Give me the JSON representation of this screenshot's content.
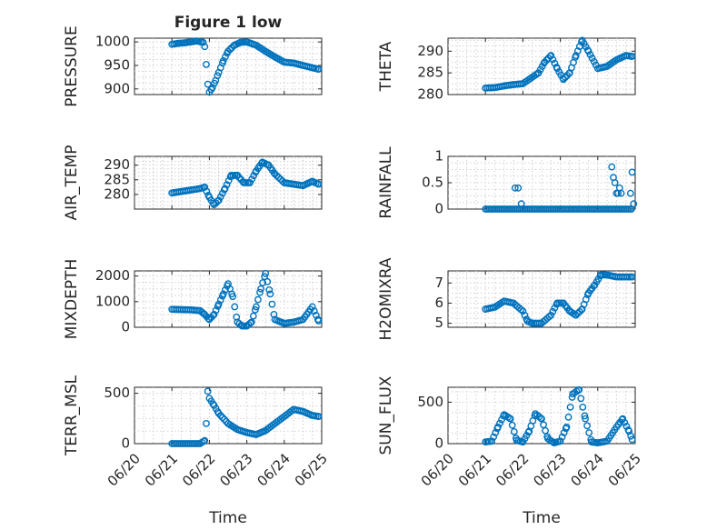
{
  "chart_data": [
    {
      "type": "scatter",
      "title": "Figure 1 low",
      "ylabel": "PRESSURE",
      "ylim": [
        888,
        1008
      ],
      "yticks": [
        900,
        950,
        1000
      ],
      "xlim": [
        "06/20",
        "06/25"
      ],
      "xticks": [
        "06/20",
        "06/21",
        "06/22",
        "06/23",
        "06/24",
        "06/25"
      ],
      "xlabel": "",
      "color": "#0072bd",
      "grid": true,
      "x": [
        "06/21 00:00",
        "06/21 04:00",
        "06/21 08:00",
        "06/21 12:00",
        "06/21 16:00",
        "06/21 20:00",
        "06/21 21:00",
        "06/21 22:00",
        "06/21 23:00",
        "06/22 00:00",
        "06/22 02:00",
        "06/22 04:00",
        "06/22 06:00",
        "06/22 09:00",
        "06/22 12:00",
        "06/22 16:00",
        "06/22 20:00",
        "06/23 00:00",
        "06/23 06:00",
        "06/23 12:00",
        "06/23 18:00",
        "06/24 00:00",
        "06/24 06:00",
        "06/24 12:00",
        "06/24 18:00",
        "06/24 22:00"
      ],
      "y": [
        995,
        997,
        998,
        1000,
        1002,
        999,
        990,
        952,
        910,
        893,
        903,
        918,
        935,
        960,
        980,
        993,
        999,
        1000,
        993,
        980,
        968,
        957,
        955,
        950,
        945,
        942
      ]
    },
    {
      "type": "scatter",
      "ylabel": "THETA",
      "ylim": [
        280,
        293
      ],
      "yticks": [
        280,
        285,
        290
      ],
      "xlim": [
        "06/20",
        "06/25"
      ],
      "xticks": [
        "06/20",
        "06/21",
        "06/22",
        "06/23",
        "06/24",
        "06/25"
      ],
      "xlabel": "",
      "color": "#0072bd",
      "grid": true,
      "x": [
        "06/21 00:00",
        "06/21 06:00",
        "06/21 12:00",
        "06/21 18:00",
        "06/22 00:00",
        "06/22 06:00",
        "06/22 10:00",
        "06/22 14:00",
        "06/22 18:00",
        "06/22 22:00",
        "06/23 02:00",
        "06/23 06:00",
        "06/23 10:00",
        "06/23 14:00",
        "06/23 18:00",
        "06/24 00:00",
        "06/24 06:00",
        "06/24 12:00",
        "06/24 18:00",
        "06/24 22:00"
      ],
      "y": [
        281.5,
        281.6,
        282,
        282.3,
        282.5,
        284,
        285,
        287.5,
        289,
        286,
        283.5,
        285,
        289,
        292.5,
        290,
        286,
        286.5,
        288,
        289,
        288.8
      ]
    },
    {
      "type": "scatter",
      "ylabel": "AIR_TEMP",
      "ylim": [
        275,
        293
      ],
      "yticks": [
        280,
        285,
        290
      ],
      "xlim": [
        "06/20",
        "06/25"
      ],
      "xticks": [
        "06/20",
        "06/21",
        "06/22",
        "06/23",
        "06/24",
        "06/25"
      ],
      "xlabel": "",
      "color": "#0072bd",
      "grid": true,
      "x": [
        "06/21 00:00",
        "06/21 06:00",
        "06/21 12:00",
        "06/21 18:00",
        "06/21 21:00",
        "06/22 00:00",
        "06/22 03:00",
        "06/22 06:00",
        "06/22 10:00",
        "06/22 14:00",
        "06/22 18:00",
        "06/22 22:00",
        "06/23 02:00",
        "06/23 06:00",
        "06/23 10:00",
        "06/23 14:00",
        "06/23 18:00",
        "06/24 00:00",
        "06/24 06:00",
        "06/24 12:00",
        "06/24 18:00",
        "06/24 22:00"
      ],
      "y": [
        280.5,
        281,
        281.5,
        282,
        282.5,
        279,
        276.5,
        278,
        282,
        286.5,
        286.5,
        284,
        284,
        288,
        291,
        290,
        287,
        284,
        283.5,
        283,
        284.5,
        283.5
      ]
    },
    {
      "type": "scatter",
      "ylabel": "RAINFALL",
      "ylim": [
        0,
        1
      ],
      "yticks": [
        0,
        0.5,
        1
      ],
      "xlim": [
        "06/20",
        "06/25"
      ],
      "xticks": [
        "06/20",
        "06/21",
        "06/22",
        "06/23",
        "06/24",
        "06/25"
      ],
      "xlabel": "",
      "color": "#0072bd",
      "grid": true,
      "x": [
        "06/21 00:00",
        "06/21 06:00",
        "06/21 12:00",
        "06/21 18:00",
        "06/21 22:00",
        "06/22 00:00",
        "06/22 06:00",
        "06/22 12:00",
        "06/22 18:00",
        "06/23 00:00",
        "06/23 06:00",
        "06/23 12:00",
        "06/23 18:00",
        "06/24 00:00",
        "06/24 06:00",
        "06/24 12:00",
        "06/24 16:00",
        "06/24 20:00",
        "06/24 22:00",
        "06/21 19:00",
        "06/21 21:00",
        "06/21 23:00",
        "06/24 09:00",
        "06/24 10:00",
        "06/24 11:00",
        "06/24 12:00",
        "06/24 13:00",
        "06/24 14:00",
        "06/24 15:00",
        "06/24 21:00",
        "06/24 22:00",
        "06/24 23:00"
      ],
      "y": [
        0,
        0,
        0,
        0,
        0,
        0,
        0,
        0,
        0,
        0,
        0,
        0,
        0,
        0,
        0,
        0,
        0,
        0,
        0,
        0.4,
        0.4,
        0.1,
        0.8,
        0.6,
        0.5,
        0.3,
        0.3,
        0.4,
        0.3,
        0.3,
        0.7,
        0.1
      ]
    },
    {
      "type": "scatter",
      "ylabel": "MIXDEPTH",
      "ylim": [
        0,
        2200
      ],
      "yticks": [
        0,
        1000,
        2000
      ],
      "xlim": [
        "06/20",
        "06/25"
      ],
      "xticks": [
        "06/20",
        "06/21",
        "06/22",
        "06/23",
        "06/24",
        "06/25"
      ],
      "xlabel": "",
      "color": "#0072bd",
      "grid": true,
      "x": [
        "06/21 00:00",
        "06/21 06:00",
        "06/21 12:00",
        "06/21 18:00",
        "06/21 21:00",
        "06/22 00:00",
        "06/22 03:00",
        "06/22 06:00",
        "06/22 09:00",
        "06/22 12:00",
        "06/22 15:00",
        "06/22 18:00",
        "06/22 21:00",
        "06/23 00:00",
        "06/23 03:00",
        "06/23 06:00",
        "06/23 09:00",
        "06/23 12:00",
        "06/23 15:00",
        "06/23 18:00",
        "06/24 00:00",
        "06/24 06:00",
        "06/24 12:00",
        "06/24 18:00",
        "06/24 22:00"
      ],
      "y": [
        700,
        690,
        680,
        650,
        500,
        300,
        500,
        900,
        1300,
        1700,
        1200,
        200,
        50,
        50,
        200,
        800,
        1500,
        2100,
        1300,
        300,
        150,
        200,
        300,
        800,
        250
      ]
    },
    {
      "type": "scatter",
      "ylabel": "H2OMIXRA",
      "ylim": [
        4.8,
        7.6
      ],
      "yticks": [
        5,
        6,
        7
      ],
      "xlim": [
        "06/20",
        "06/25"
      ],
      "xticks": [
        "06/20",
        "06/21",
        "06/22",
        "06/23",
        "06/24",
        "06/25"
      ],
      "xlabel": "",
      "color": "#0072bd",
      "grid": true,
      "x": [
        "06/21 00:00",
        "06/21 06:00",
        "06/21 12:00",
        "06/21 18:00",
        "06/22 00:00",
        "06/22 03:00",
        "06/22 06:00",
        "06/22 12:00",
        "06/22 18:00",
        "06/22 22:00",
        "06/23 02:00",
        "06/23 06:00",
        "06/23 10:00",
        "06/23 14:00",
        "06/23 18:00",
        "06/23 22:00",
        "06/24 02:00",
        "06/24 06:00",
        "06/24 12:00",
        "06/24 18:00",
        "06/24 22:00"
      ],
      "y": [
        5.7,
        5.8,
        6.1,
        6.0,
        5.6,
        5.1,
        5.0,
        5.0,
        5.4,
        6.0,
        6.0,
        5.6,
        5.4,
        5.7,
        6.5,
        6.9,
        7.4,
        7.4,
        7.3,
        7.3,
        7.3
      ]
    },
    {
      "type": "scatter",
      "ylabel": "TERR_MSL",
      "ylim": [
        0,
        560
      ],
      "yticks": [
        0,
        500
      ],
      "xlim": [
        "06/20",
        "06/25"
      ],
      "xticks": [
        "06/20",
        "06/21",
        "06/22",
        "06/23",
        "06/24",
        "06/25"
      ],
      "xlabel": "Time",
      "color": "#0072bd",
      "grid": true,
      "x": [
        "06/21 00:00",
        "06/21 06:00",
        "06/21 12:00",
        "06/21 18:00",
        "06/21 21:00",
        "06/21 22:00",
        "06/21 23:00",
        "06/22 00:00",
        "06/22 03:00",
        "06/22 06:00",
        "06/22 12:00",
        "06/22 18:00",
        "06/23 00:00",
        "06/23 06:00",
        "06/23 12:00",
        "06/23 18:00",
        "06/24 00:00",
        "06/24 06:00",
        "06/24 12:00",
        "06/24 18:00",
        "06/24 22:00"
      ],
      "y": [
        0,
        0,
        0,
        0,
        30,
        200,
        520,
        450,
        380,
        300,
        200,
        140,
        110,
        90,
        130,
        200,
        270,
        340,
        320,
        280,
        270
      ]
    },
    {
      "type": "scatter",
      "ylabel": "SUN_FLUX",
      "ylim": [
        0,
        680
      ],
      "yticks": [
        0,
        500
      ],
      "xlim": [
        "06/20",
        "06/25"
      ],
      "xticks": [
        "06/20",
        "06/21",
        "06/22",
        "06/23",
        "06/24",
        "06/25"
      ],
      "xlabel": "Time",
      "color": "#0072bd",
      "grid": true,
      "x": [
        "06/21 00:00",
        "06/21 04:00",
        "06/21 08:00",
        "06/21 12:00",
        "06/21 16:00",
        "06/21 20:00",
        "06/22 00:00",
        "06/22 04:00",
        "06/22 08:00",
        "06/22 12:00",
        "06/22 16:00",
        "06/22 20:00",
        "06/23 00:00",
        "06/23 04:00",
        "06/23 08:00",
        "06/23 12:00",
        "06/23 16:00",
        "06/23 20:00",
        "06/24 00:00",
        "06/24 06:00",
        "06/24 12:00",
        "06/24 16:00",
        "06/24 20:00",
        "06/24 22:00"
      ],
      "y": [
        20,
        30,
        200,
        350,
        300,
        40,
        20,
        150,
        360,
        300,
        60,
        10,
        30,
        200,
        600,
        650,
        300,
        20,
        10,
        30,
        200,
        300,
        150,
        50
      ]
    }
  ]
}
